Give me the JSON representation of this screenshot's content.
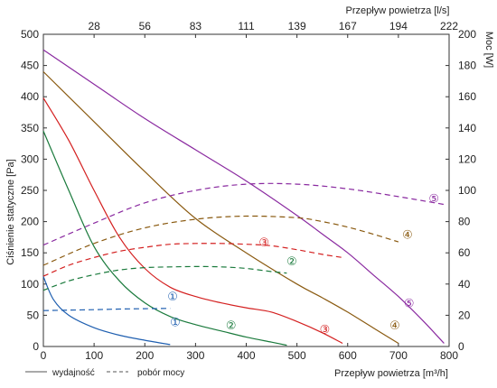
{
  "chart_data": {
    "type": "line",
    "xlabel_bottom": "Przepływ powietrza [m³/h]",
    "xlabel_top": "Przepływ powietrza [l/s]",
    "ylabel_left": "Ciśnienie statyczne [Pa]",
    "ylabel_right": "Moc [W]",
    "xlim": [
      0,
      800
    ],
    "ylim_left": [
      0,
      500
    ],
    "ylim_right": [
      0,
      200
    ],
    "x_ticks": [
      "0",
      "100",
      "200",
      "300",
      "400",
      "500",
      "600",
      "700",
      "800"
    ],
    "y_left_ticks": [
      "0",
      "50",
      "100",
      "150",
      "200",
      "250",
      "300",
      "350",
      "400",
      "450",
      "500"
    ],
    "y_right_ticks": [
      "0",
      "20",
      "40",
      "60",
      "80",
      "100",
      "120",
      "140",
      "160",
      "180",
      "200"
    ],
    "top_ticks": [
      {
        "label": "28",
        "x": 100
      },
      {
        "label": "56",
        "x": 200
      },
      {
        "label": "83",
        "x": 300
      },
      {
        "label": "111",
        "x": 400
      },
      {
        "label": "139",
        "x": 500
      },
      {
        "label": "167",
        "x": 600
      },
      {
        "label": "194",
        "x": 700
      },
      {
        "label": "222",
        "x": 800
      }
    ],
    "grid": false,
    "legend": {
      "position": "bottom-left",
      "solid_label": "wydajność",
      "dashed_label": "pobór mocy"
    },
    "series": [
      {
        "marker": "①",
        "kind": "pressure",
        "axis": "left",
        "color": "#1f5fb0",
        "x": [
          0,
          20,
          50,
          100,
          150,
          200,
          250
        ],
        "y": [
          112,
          75,
          50,
          30,
          18,
          10,
          3
        ]
      },
      {
        "marker": "②",
        "kind": "pressure",
        "axis": "left",
        "color": "#1a7a3c",
        "x": [
          0,
          50,
          100,
          150,
          200,
          250,
          300,
          350,
          400,
          450,
          480
        ],
        "y": [
          345,
          250,
          160,
          105,
          70,
          48,
          35,
          25,
          15,
          7,
          2
        ]
      },
      {
        "marker": "③",
        "kind": "pressure",
        "axis": "left",
        "color": "#d42020",
        "x": [
          0,
          50,
          100,
          150,
          200,
          250,
          300,
          350,
          400,
          450,
          500,
          550,
          590
        ],
        "y": [
          398,
          330,
          250,
          175,
          125,
          95,
          80,
          70,
          62,
          55,
          40,
          22,
          5
        ]
      },
      {
        "marker": "④",
        "kind": "pressure",
        "axis": "left",
        "color": "#8a5a10",
        "x": [
          0,
          100,
          200,
          300,
          400,
          500,
          550,
          600,
          650,
          700
        ],
        "y": [
          440,
          360,
          280,
          205,
          150,
          100,
          78,
          55,
          30,
          5
        ]
      },
      {
        "marker": "⑤",
        "kind": "pressure",
        "axis": "left",
        "color": "#8a2aa0",
        "x": [
          0,
          100,
          200,
          300,
          400,
          500,
          550,
          600,
          650,
          700,
          750,
          790
        ],
        "y": [
          475,
          420,
          365,
          315,
          265,
          210,
          180,
          150,
          115,
          80,
          40,
          5
        ]
      },
      {
        "marker": "①",
        "kind": "power",
        "axis": "right",
        "color": "#1f5fb0",
        "x": [
          0,
          50,
          100,
          150,
          200,
          250
        ],
        "y": [
          23,
          23.3,
          23.6,
          24,
          24.2,
          24.4
        ]
      },
      {
        "marker": "②",
        "kind": "power",
        "axis": "right",
        "color": "#1a7a3c",
        "x": [
          0,
          50,
          100,
          150,
          200,
          250,
          300,
          350,
          400,
          450,
          480
        ],
        "y": [
          36,
          42,
          46,
          49,
          50.5,
          51,
          51.2,
          51,
          50,
          48,
          47
        ]
      },
      {
        "marker": "③",
        "kind": "power",
        "axis": "right",
        "color": "#d42020",
        "x": [
          0,
          50,
          100,
          150,
          200,
          250,
          300,
          350,
          400,
          450,
          500,
          550,
          590
        ],
        "y": [
          45,
          52,
          57,
          61,
          63.5,
          65.5,
          66,
          66,
          65.5,
          64.5,
          62,
          59,
          57
        ]
      },
      {
        "marker": "④",
        "kind": "power",
        "axis": "right",
        "color": "#8a5a10",
        "x": [
          0,
          100,
          200,
          300,
          400,
          500,
          550,
          600,
          650,
          700
        ],
        "y": [
          52,
          66,
          76,
          81.5,
          83.5,
          82.5,
          80,
          76.5,
          72,
          67
        ]
      },
      {
        "marker": "⑤",
        "kind": "power",
        "axis": "right",
        "color": "#8a2aa0",
        "x": [
          0,
          100,
          200,
          300,
          400,
          500,
          600,
          700,
          790
        ],
        "y": [
          65,
          79,
          92,
          100,
          104,
          104,
          101,
          96,
          91
        ]
      }
    ],
    "annotations": [
      {
        "text": "①",
        "x": 260,
        "y": 40,
        "axis": "left",
        "color": "#1f5fb0"
      },
      {
        "text": "①",
        "x": 255,
        "y": 81,
        "axis": "left",
        "color": "#1f5fb0"
      },
      {
        "text": "②",
        "x": 370,
        "y": 35,
        "axis": "left",
        "color": "#1a7a3c"
      },
      {
        "text": "②",
        "x": 490,
        "y": 55,
        "axis": "right",
        "color": "#1a7a3c"
      },
      {
        "text": "③",
        "x": 555,
        "y": 28,
        "axis": "left",
        "color": "#d42020"
      },
      {
        "text": "③",
        "x": 435,
        "y": 67,
        "axis": "right",
        "color": "#d42020"
      },
      {
        "text": "④",
        "x": 693,
        "y": 35,
        "axis": "left",
        "color": "#8a5a10"
      },
      {
        "text": "④",
        "x": 718,
        "y": 72,
        "axis": "right",
        "color": "#8a5a10"
      },
      {
        "text": "⑤",
        "x": 721,
        "y": 70,
        "axis": "left",
        "color": "#8a2aa0"
      },
      {
        "text": "⑤",
        "x": 770,
        "y": 95,
        "axis": "right",
        "color": "#8a2aa0"
      }
    ]
  }
}
